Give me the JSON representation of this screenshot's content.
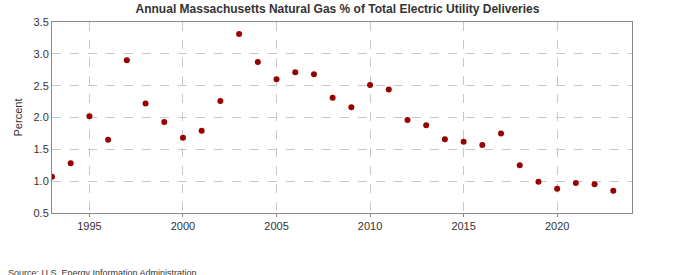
{
  "chart_data": {
    "type": "scatter",
    "title": "Annual Massachusetts Natural Gas % of Total Electric Utility Deliveries",
    "y_label": "Percent",
    "annotations": [
      "Source: U.S. Energy Information Administration"
    ],
    "x": [
      1993,
      1994,
      1995,
      1996,
      1997,
      1998,
      1999,
      2000,
      2001,
      2002,
      2003,
      2004,
      2005,
      2006,
      2007,
      2008,
      2009,
      2010,
      2011,
      2012,
      2013,
      2014,
      2015,
      2016,
      2017,
      2018,
      2019,
      2020,
      2021,
      2022,
      2023
    ],
    "values": [
      1.07,
      1.28,
      2.02,
      1.65,
      2.9,
      2.22,
      1.93,
      1.68,
      1.79,
      2.26,
      3.31,
      2.87,
      2.6,
      2.71,
      2.68,
      2.31,
      2.16,
      2.51,
      2.44,
      1.96,
      1.88,
      1.66,
      1.62,
      1.57,
      1.75,
      1.25,
      0.99,
      0.88,
      0.97,
      0.95,
      0.85
    ],
    "color": "#990000",
    "marker": "circle",
    "xlim": [
      1993,
      2024
    ],
    "xticks": [
      1995,
      2000,
      2005,
      2010,
      2015,
      2020
    ],
    "ylim": [
      0.5,
      3.5
    ],
    "yticks": [
      0.5,
      {
        "value": 1,
        "label": "1.0"
      },
      1.5,
      {
        "value": 2,
        "label": "2.0"
      },
      2.5,
      {
        "value": 3,
        "label": "3.0"
      },
      3.5
    ],
    "grid": true
  }
}
